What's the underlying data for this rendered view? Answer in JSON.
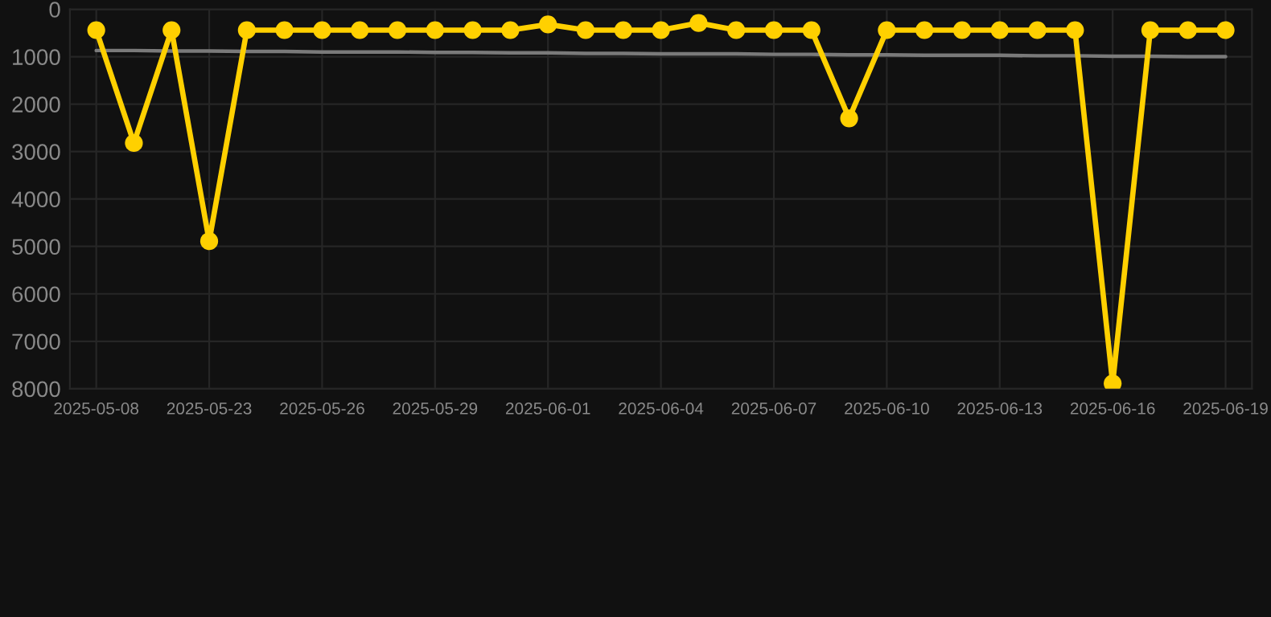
{
  "chart_data": {
    "type": "line",
    "categories": [
      "2025-05-08",
      null,
      null,
      "2025-05-23",
      null,
      null,
      "2025-05-26",
      null,
      null,
      "2025-05-29",
      null,
      null,
      "2025-06-01",
      null,
      null,
      "2025-06-04",
      null,
      null,
      "2025-06-07",
      null,
      null,
      "2025-06-10",
      null,
      null,
      "2025-06-13",
      null,
      null,
      "2025-06-16",
      null,
      null,
      "2025-06-19"
    ],
    "series": [
      {
        "color": "#7a7a7a",
        "marker": "none",
        "values": [
          870,
          870,
          880,
          880,
          890,
          890,
          900,
          900,
          900,
          910,
          910,
          920,
          920,
          930,
          930,
          940,
          940,
          940,
          950,
          950,
          960,
          960,
          970,
          970,
          970,
          980,
          980,
          990,
          990,
          1000,
          1000
        ]
      },
      {
        "color": "#ffd000",
        "marker": "circle",
        "values": [
          440,
          2820,
          440,
          4890,
          440,
          440,
          440,
          440,
          440,
          440,
          440,
          440,
          320,
          440,
          440,
          440,
          290,
          440,
          440,
          440,
          2300,
          440,
          440,
          440,
          440,
          440,
          440,
          7890,
          440,
          440,
          440
        ]
      }
    ],
    "ylim": [
      8000,
      0
    ],
    "yticks": [
      0,
      1000,
      2000,
      3000,
      4000,
      5000,
      6000,
      7000,
      8000
    ],
    "grid": true
  }
}
